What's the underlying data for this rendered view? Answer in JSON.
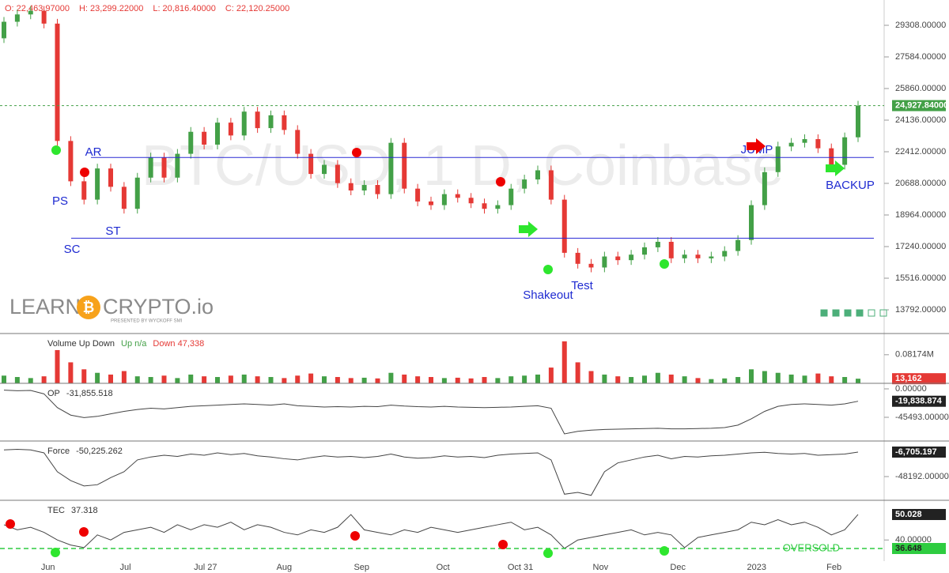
{
  "chart_data": [
    {
      "type": "candlestick",
      "header": [
        "O: 22,463.97000",
        "H: 23,299.22000",
        "L: 20,816.40000",
        "C: 22,120.25000"
      ],
      "watermark": "BTC/USD, 1 D, Coinbase",
      "logo": [
        "LEARN",
        "CRYPTO.io",
        "PRESENTED BY WYCKOFF SMI"
      ],
      "up_color": "#43a047",
      "down_color": "#e53935",
      "open": [
        28600,
        29500,
        29900,
        30100,
        29400,
        23000,
        20800,
        19800,
        21500,
        20500,
        19300,
        21000,
        22100,
        21000,
        22300,
        23500,
        22800,
        24000,
        23300,
        24600,
        23700,
        24400,
        23600,
        22300,
        21200,
        21700,
        20700,
        20300,
        20600,
        20100,
        22900,
        20400,
        19700,
        19500,
        20100,
        19900,
        19600,
        19300,
        19500,
        20400,
        20900,
        21400,
        19800,
        16900,
        16300,
        16100,
        16700,
        16500,
        16800,
        17200,
        17500,
        16600,
        16800,
        16600,
        16700,
        17000,
        17600,
        19500,
        21300,
        22700,
        22900,
        23100,
        22600,
        21700,
        23200
      ],
      "close": [
        29500,
        29900,
        30100,
        29400,
        23000,
        20800,
        19800,
        21500,
        20500,
        19300,
        21000,
        22100,
        21000,
        22300,
        23500,
        22800,
        24000,
        23300,
        24600,
        23700,
        24400,
        23600,
        22300,
        21200,
        21700,
        20700,
        20300,
        20600,
        20100,
        22900,
        20400,
        19700,
        19500,
        20100,
        19900,
        19600,
        19300,
        19500,
        20400,
        20900,
        21400,
        19800,
        16900,
        16300,
        16100,
        16700,
        16500,
        16800,
        17200,
        17500,
        16600,
        16800,
        16600,
        16700,
        17000,
        17600,
        19500,
        21300,
        22700,
        22900,
        23100,
        22600,
        21700,
        23200,
        24927.84
      ],
      "ylim": [
        12585,
        30687
      ],
      "yticks": [
        {
          "value": 29308,
          "label": "29308.00000"
        },
        {
          "value": 27584,
          "label": "27584.00000"
        },
        {
          "value": 25860,
          "label": "25860.00000"
        },
        {
          "value": 24136,
          "label": "24136.00000"
        },
        {
          "value": 22412,
          "label": "22412.00000"
        },
        {
          "value": 20688,
          "label": "20688.00000"
        },
        {
          "value": 18964,
          "label": "18964.00000"
        },
        {
          "value": 17240,
          "label": "17240.00000"
        },
        {
          "value": 15516,
          "label": "15516.00000"
        },
        {
          "value": 13792,
          "label": "13792.00000"
        }
      ],
      "levels": [
        22100,
        17700
      ],
      "level_color": "#2a2ad4",
      "last": {
        "value": 24927.84,
        "label": "24,927.84000"
      },
      "badge_color": "#43a047",
      "annotations": [
        "PS",
        "SC",
        "AR",
        "ST",
        "Shakeout",
        "Test",
        "JUMP",
        "BACKUP"
      ],
      "xticks": [
        {
          "value": 3.3,
          "label": "Jun"
        },
        {
          "value": 9.1,
          "label": "Jul"
        },
        {
          "value": 15.1,
          "label": "Jul 27"
        },
        {
          "value": 21,
          "label": "Aug"
        },
        {
          "value": 26.8,
          "label": "Sep"
        },
        {
          "value": 32.9,
          "label": "Oct"
        },
        {
          "value": 38.7,
          "label": "Oct 31"
        },
        {
          "value": 44.7,
          "label": "Nov"
        },
        {
          "value": 50.5,
          "label": "Dec"
        },
        {
          "value": 56.4,
          "label": "2023"
        },
        {
          "value": 62.2,
          "label": "Feb"
        }
      ]
    },
    {
      "type": "bar",
      "legend": [
        "Volume Up Down",
        "Up n/a",
        "Down 47,338"
      ],
      "values": [
        22000,
        18000,
        15000,
        20000,
        95000,
        60000,
        40000,
        30000,
        25000,
        35000,
        20000,
        18000,
        22000,
        15000,
        25000,
        20000,
        18000,
        22000,
        25000,
        20000,
        18000,
        15000,
        22000,
        28000,
        20000,
        18000,
        15000,
        16000,
        14000,
        30000,
        25000,
        20000,
        18000,
        15000,
        16000,
        14000,
        18000,
        15000,
        20000,
        22000,
        25000,
        45000,
        120000,
        60000,
        35000,
        25000,
        20000,
        18000,
        22000,
        30000,
        25000,
        20000,
        15000,
        12000,
        14000,
        18000,
        40000,
        35000,
        30000,
        25000,
        22000,
        28000,
        20000,
        18000,
        13162
      ],
      "ylim": [
        0,
        137800
      ],
      "yticks": [
        {
          "value": 81740,
          "label": "0.08174M"
        }
      ],
      "last": {
        "value": 13162,
        "label": "13,162"
      },
      "badge_color": "#e53935"
    },
    {
      "type": "line",
      "legend": [
        "OP",
        "-31,855.518"
      ],
      "color": "#444444",
      "values": [
        -2000,
        -3000,
        -2500,
        -8000,
        -30000,
        -42000,
        -46000,
        -44000,
        -40000,
        -36000,
        -33000,
        -31000,
        -32000,
        -30000,
        -28000,
        -27000,
        -26000,
        -25000,
        -24000,
        -25000,
        -26000,
        -24000,
        -27000,
        -28000,
        -29000,
        -28500,
        -29000,
        -28000,
        -28500,
        -26000,
        -27500,
        -28500,
        -29000,
        -28000,
        -29000,
        -29500,
        -30000,
        -29500,
        -29000,
        -28000,
        -27000,
        -31000,
        -72000,
        -68000,
        -66000,
        -65000,
        -64500,
        -64000,
        -63500,
        -63000,
        -64000,
        -64000,
        -63500,
        -63000,
        -62000,
        -58000,
        -48000,
        -36000,
        -28000,
        -25000,
        -24000,
        -25000,
        -26000,
        -24000,
        -19838.874
      ],
      "ylim": [
        -82160,
        6320
      ],
      "yticks": [
        {
          "value": 0,
          "label": "0.00000"
        },
        {
          "value": -45493,
          "label": "-45493.00000"
        }
      ],
      "last": {
        "value": -19838.874,
        "label": "-19,838.874"
      },
      "badge_color": "#222222"
    },
    {
      "type": "line",
      "legend": [
        "Force",
        "-50,225.262"
      ],
      "color": "#444444",
      "values": [
        -3000,
        -2000,
        -3000,
        -8000,
        -40000,
        -55000,
        -64000,
        -62000,
        -50000,
        -40000,
        -20000,
        -15000,
        -12000,
        -14000,
        -10000,
        -12000,
        -8000,
        -11000,
        -9000,
        -13000,
        -15000,
        -18000,
        -20000,
        -16000,
        -13000,
        -15000,
        -14000,
        -16000,
        -14000,
        -10000,
        -15000,
        -17000,
        -16000,
        -13000,
        -15000,
        -14000,
        -16000,
        -12000,
        -10000,
        -9000,
        -8000,
        -20000,
        -78000,
        -75000,
        -80000,
        -40000,
        -25000,
        -20000,
        -15000,
        -12000,
        -18000,
        -14000,
        -15000,
        -13000,
        -12000,
        -10000,
        -8000,
        -7000,
        -9000,
        -10000,
        -9000,
        -12000,
        -11000,
        -10000,
        -6705.197
      ],
      "ylim": [
        -87000,
        9350
      ],
      "yticks": [
        {
          "value": -48192,
          "label": "-48192.00000"
        }
      ],
      "last": {
        "value": -6705.197,
        "label": "-6,705.197"
      },
      "badge_color": "#222222"
    },
    {
      "type": "line",
      "legend": [
        "TEC",
        "37.318"
      ],
      "color": "#444444",
      "values": [
        46,
        44,
        45,
        43,
        40,
        38,
        37,
        42,
        40,
        43,
        44,
        45,
        43,
        46,
        44,
        46,
        45,
        47,
        44,
        46,
        45,
        43,
        42,
        44,
        43,
        45,
        50,
        44,
        43,
        42,
        44,
        43,
        45,
        44,
        43,
        44,
        45,
        46,
        47,
        44,
        45,
        42,
        36.7,
        40,
        41,
        42,
        43,
        44,
        42,
        43,
        42,
        37,
        41,
        42,
        43,
        44,
        47,
        46,
        48,
        46,
        47,
        45,
        42,
        44,
        50.028
      ],
      "ylim": [
        31.67,
        55
      ],
      "yticks": [
        {
          "value": 40,
          "label": "40.00000"
        }
      ],
      "last": {
        "value": 50.028,
        "label": "50.028"
      },
      "badge_color": "#222222",
      "oversold": {
        "value": 36.648,
        "label": "36.648",
        "text": "OVERSOLD"
      },
      "oversold_color": "#2ecc40"
    }
  ]
}
